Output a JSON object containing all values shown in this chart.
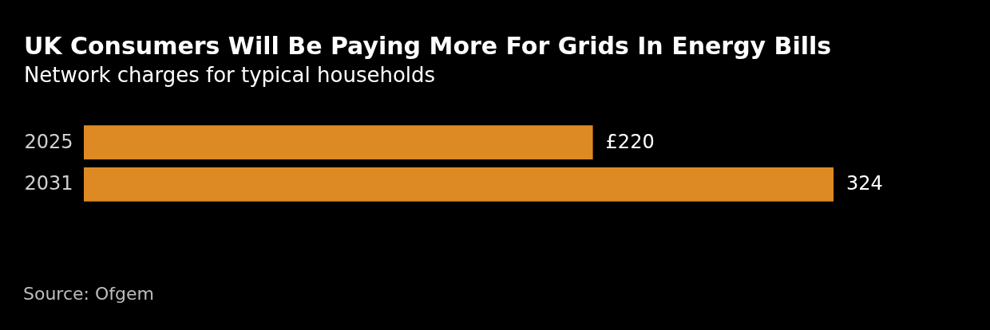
{
  "chart_data": {
    "type": "bar",
    "orientation": "horizontal",
    "title": "UK Consumers Will Be Paying More For Grids In Energy Bills",
    "subtitle": "Network charges for typical households",
    "categories": [
      "2025",
      "2031"
    ],
    "values": [
      220,
      324
    ],
    "value_labels": [
      "£220",
      "324"
    ],
    "color": "#dd8a24",
    "annotations": [
      "Source: Ofgem"
    ]
  }
}
